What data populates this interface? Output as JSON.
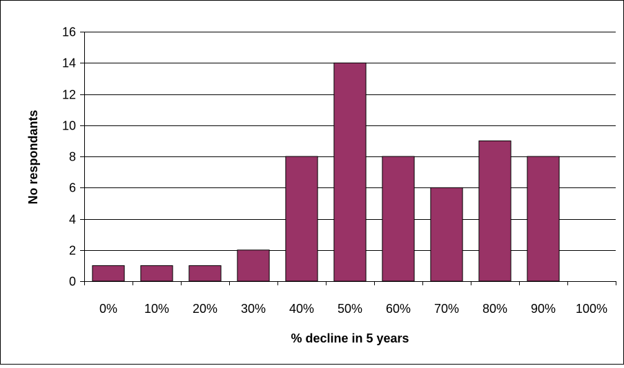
{
  "chart_data": {
    "type": "bar",
    "categories": [
      "0%",
      "10%",
      "20%",
      "30%",
      "40%",
      "50%",
      "60%",
      "70%",
      "80%",
      "90%",
      "100%"
    ],
    "values": [
      1,
      1,
      1,
      2,
      8,
      14,
      8,
      6,
      9,
      8,
      0
    ],
    "title": "",
    "xlabel": "% decline in 5 years",
    "ylabel": "No respondants",
    "ylim": [
      0,
      16
    ],
    "yticks": [
      0,
      2,
      4,
      6,
      8,
      10,
      12,
      14,
      16
    ],
    "grid": "horizontal",
    "legend": "none",
    "colors": {
      "bar": "#993366",
      "bar_border": "#000000",
      "grid": "#000000",
      "frame": "#000000"
    }
  }
}
